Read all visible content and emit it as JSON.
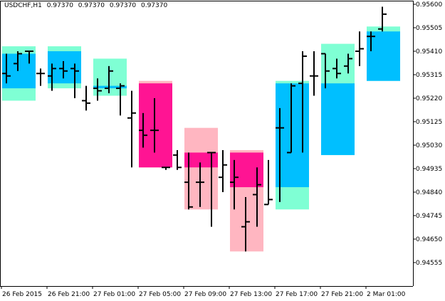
{
  "header": {
    "symbol_timeframe": "USDCHF,H1",
    "open": "0.97370",
    "high": "0.97370",
    "low": "0.97370",
    "close": "0.97370"
  },
  "colors": {
    "background": "#ffffff",
    "axis": "#000000",
    "bar": "#000000",
    "up_body": "#00bfff",
    "up_shadow": "#7fffd4",
    "down_body": "#ff1493",
    "down_shadow": "#ffb6c1"
  },
  "chart_data": {
    "type": "candlestick",
    "title": "USDCHF,H1",
    "ylim": [
      0.9451,
      0.9561
    ],
    "y_ticks": [
      "0.95600",
      "0.95505",
      "0.95410",
      "0.95315",
      "0.95220",
      "0.95125",
      "0.95030",
      "0.94935",
      "0.94840",
      "0.94745",
      "0.94650",
      "0.94555"
    ],
    "x_ticks": [
      "26 Feb 2015",
      "26 Feb 21:00",
      "27 Feb 01:00",
      "27 Feb 05:00",
      "27 Feb 09:00",
      "27 Feb 13:00",
      "27 Feb 17:00",
      "27 Feb 21:00",
      "2 Mar 01:00"
    ],
    "grid": false,
    "higher_tf_candles": [
      {
        "direction": "up",
        "open": 0.9526,
        "close": 0.954,
        "high": 0.9543,
        "low": 0.9521
      },
      {
        "direction": "up",
        "open": 0.9528,
        "close": 0.9541,
        "high": 0.9543,
        "low": 0.9526
      },
      {
        "direction": "up",
        "open": 0.9526,
        "close": 0.9527,
        "high": 0.9538,
        "low": 0.9523
      },
      {
        "direction": "down",
        "open": 0.9528,
        "close": 0.9494,
        "high": 0.9529,
        "low": 0.9494
      },
      {
        "direction": "down",
        "open": 0.95,
        "close": 0.9494,
        "high": 0.951,
        "low": 0.9477
      },
      {
        "direction": "down",
        "open": 0.95,
        "close": 0.9486,
        "high": 0.9501,
        "low": 0.946
      },
      {
        "direction": "up",
        "open": 0.9486,
        "close": 0.9528,
        "high": 0.9529,
        "low": 0.9477
      },
      {
        "direction": "up",
        "open": 0.9499,
        "close": 0.9528,
        "high": 0.9544,
        "low": 0.9499
      },
      {
        "direction": "up",
        "open": 0.9529,
        "close": 0.9549,
        "high": 0.9551,
        "low": 0.9529
      }
    ],
    "bars": [
      {
        "o": 0.9532,
        "h": 0.954,
        "l": 0.9528,
        "c": 0.9531
      },
      {
        "o": 0.9536,
        "h": 0.9541,
        "l": 0.9533,
        "c": 0.954
      },
      {
        "o": 0.9541,
        "h": 0.9541,
        "l": 0.9536,
        "c": 0.9541
      },
      {
        "o": 0.9532,
        "h": 0.9534,
        "l": 0.9527,
        "c": 0.9532
      },
      {
        "o": 0.9531,
        "h": 0.9536,
        "l": 0.9525,
        "c": 0.9534
      },
      {
        "o": 0.9534,
        "h": 0.9537,
        "l": 0.953,
        "c": 0.9533
      },
      {
        "o": 0.9534,
        "h": 0.9536,
        "l": 0.9522,
        "c": 0.9533
      },
      {
        "o": 0.9521,
        "h": 0.9527,
        "l": 0.9517,
        "c": 0.952
      },
      {
        "o": 0.9526,
        "h": 0.953,
        "l": 0.9521,
        "c": 0.9525
      },
      {
        "o": 0.9526,
        "h": 0.9535,
        "l": 0.9524,
        "c": 0.9533
      },
      {
        "o": 0.9526,
        "h": 0.9528,
        "l": 0.9515,
        "c": 0.9527
      },
      {
        "o": 0.9514,
        "h": 0.9525,
        "l": 0.9494,
        "c": 0.9516
      },
      {
        "o": 0.9509,
        "h": 0.9516,
        "l": 0.9502,
        "c": 0.9507
      },
      {
        "o": 0.9509,
        "h": 0.9522,
        "l": 0.95,
        "c": 0.9509
      },
      {
        "o": 0.9494,
        "h": 0.9494,
        "l": 0.9493,
        "c": 0.9494
      },
      {
        "o": 0.9499,
        "h": 0.9501,
        "l": 0.9493,
        "c": 0.9494
      },
      {
        "o": 0.9488,
        "h": 0.95,
        "l": 0.9477,
        "c": 0.9478
      },
      {
        "o": 0.9488,
        "h": 0.9496,
        "l": 0.9478,
        "c": 0.9488
      },
      {
        "o": 0.95,
        "h": 0.95,
        "l": 0.947,
        "c": 0.95
      },
      {
        "o": 0.949,
        "h": 0.9501,
        "l": 0.9484,
        "c": 0.9495
      },
      {
        "o": 0.9488,
        "h": 0.9497,
        "l": 0.9477,
        "c": 0.949
      },
      {
        "o": 0.947,
        "h": 0.9482,
        "l": 0.946,
        "c": 0.9472
      },
      {
        "o": 0.9483,
        "h": 0.9494,
        "l": 0.947,
        "c": 0.9487
      },
      {
        "o": 0.9479,
        "h": 0.9497,
        "l": 0.9479,
        "c": 0.9481
      },
      {
        "o": 0.951,
        "h": 0.9518,
        "l": 0.948,
        "c": 0.951
      },
      {
        "o": 0.95,
        "h": 0.9528,
        "l": 0.95,
        "c": 0.9527
      },
      {
        "o": 0.9528,
        "h": 0.9541,
        "l": 0.95,
        "c": 0.9539
      },
      {
        "o": 0.9531,
        "h": 0.9541,
        "l": 0.9523,
        "c": 0.9531
      },
      {
        "o": 0.954,
        "h": 0.954,
        "l": 0.9526,
        "c": 0.9533
      },
      {
        "o": 0.9534,
        "h": 0.9538,
        "l": 0.953,
        "c": 0.9532
      },
      {
        "o": 0.9535,
        "h": 0.954,
        "l": 0.9532,
        "c": 0.9538
      },
      {
        "o": 0.9541,
        "h": 0.9549,
        "l": 0.9535,
        "c": 0.9542
      },
      {
        "o": 0.9547,
        "h": 0.9549,
        "l": 0.9541,
        "c": 0.9547
      },
      {
        "o": 0.955,
        "h": 0.9559,
        "l": 0.9549,
        "c": 0.9556
      }
    ]
  }
}
